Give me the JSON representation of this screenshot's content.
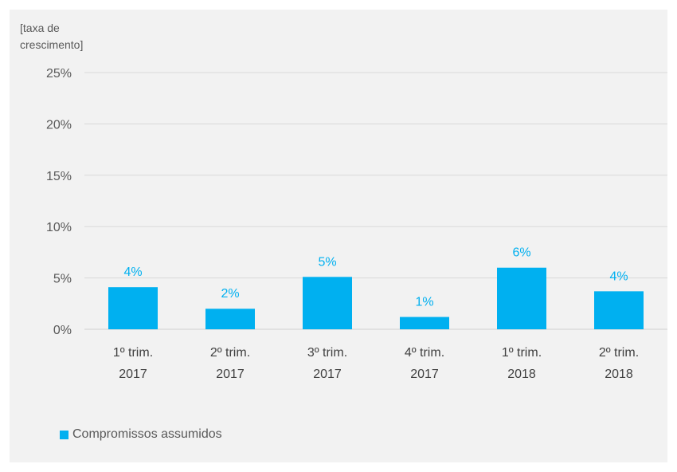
{
  "chart_data": {
    "type": "bar",
    "ylabel_lines": [
      "[taxa de",
      "crescimento]"
    ],
    "categories": [
      [
        "1º trim.",
        "2017"
      ],
      [
        "2º trim.",
        "2017"
      ],
      [
        "3º trim.",
        "2017"
      ],
      [
        "4º trim.",
        "2017"
      ],
      [
        "1º trim.",
        "2018"
      ],
      [
        "2º trim.",
        "2018"
      ]
    ],
    "series": [
      {
        "name": "Compromissos assumidos",
        "values": [
          4.1,
          2.0,
          5.1,
          1.2,
          6.0,
          3.7
        ],
        "data_labels": [
          "4%",
          "2%",
          "5%",
          "1%",
          "6%",
          "4%"
        ],
        "color": "#00b0f0"
      }
    ],
    "ylim": [
      0,
      25
    ],
    "yticks": [
      0,
      5,
      10,
      15,
      20,
      25
    ],
    "ytick_labels": [
      "0%",
      "5%",
      "10%",
      "15%",
      "20%",
      "25%"
    ],
    "grid": true,
    "legend": "bottom-left"
  }
}
